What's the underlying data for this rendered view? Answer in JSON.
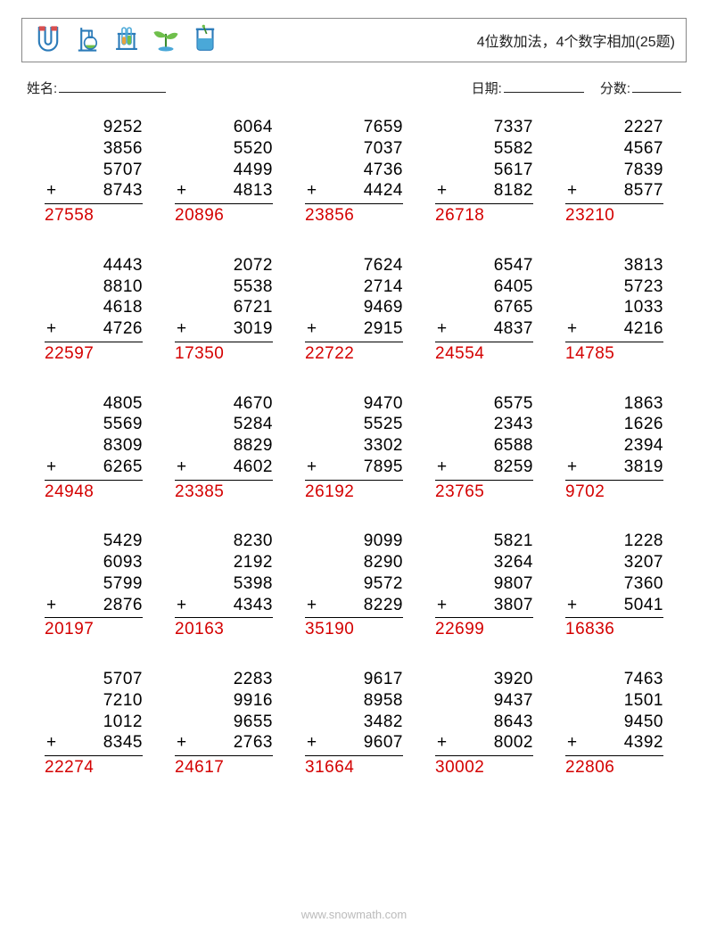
{
  "title": "4位数加法，4个数字相加(25题)",
  "labels": {
    "name": "姓名:",
    "date": "日期:",
    "score": "分数:"
  },
  "colors": {
    "text": "#000000",
    "answer": "#d40000",
    "footer": "#bbbbbb",
    "border": "#888888",
    "icon_blue": "#4aa8d8",
    "icon_blue_dark": "#2b7bb9",
    "icon_green": "#6fbf4b",
    "icon_green_dark": "#3a8b2e",
    "icon_red": "#d94f4f",
    "icon_orange": "#e8a23d"
  },
  "typography": {
    "title_fontsize": 16,
    "label_fontsize": 15,
    "number_fontsize": 19,
    "footer_fontsize": 13
  },
  "operator": "+",
  "problems": [
    {
      "addends": [
        "9252",
        "3856",
        "5707",
        "8743"
      ],
      "answer": "27558"
    },
    {
      "addends": [
        "6064",
        "5520",
        "4499",
        "4813"
      ],
      "answer": "20896"
    },
    {
      "addends": [
        "7659",
        "7037",
        "4736",
        "4424"
      ],
      "answer": "23856"
    },
    {
      "addends": [
        "7337",
        "5582",
        "5617",
        "8182"
      ],
      "answer": "26718"
    },
    {
      "addends": [
        "2227",
        "4567",
        "7839",
        "8577"
      ],
      "answer": "23210"
    },
    {
      "addends": [
        "4443",
        "8810",
        "4618",
        "4726"
      ],
      "answer": "22597"
    },
    {
      "addends": [
        "2072",
        "5538",
        "6721",
        "3019"
      ],
      "answer": "17350"
    },
    {
      "addends": [
        "7624",
        "2714",
        "9469",
        "2915"
      ],
      "answer": "22722"
    },
    {
      "addends": [
        "6547",
        "6405",
        "6765",
        "4837"
      ],
      "answer": "24554"
    },
    {
      "addends": [
        "3813",
        "5723",
        "1033",
        "4216"
      ],
      "answer": "14785"
    },
    {
      "addends": [
        "4805",
        "5569",
        "8309",
        "6265"
      ],
      "answer": "24948"
    },
    {
      "addends": [
        "4670",
        "5284",
        "8829",
        "4602"
      ],
      "answer": "23385"
    },
    {
      "addends": [
        "9470",
        "5525",
        "3302",
        "7895"
      ],
      "answer": "26192"
    },
    {
      "addends": [
        "6575",
        "2343",
        "6588",
        "8259"
      ],
      "answer": "23765"
    },
    {
      "addends": [
        "1863",
        "1626",
        "2394",
        "3819"
      ],
      "answer": "9702"
    },
    {
      "addends": [
        "5429",
        "6093",
        "5799",
        "2876"
      ],
      "answer": "20197"
    },
    {
      "addends": [
        "8230",
        "2192",
        "5398",
        "4343"
      ],
      "answer": "20163"
    },
    {
      "addends": [
        "9099",
        "8290",
        "9572",
        "8229"
      ],
      "answer": "35190"
    },
    {
      "addends": [
        "5821",
        "3264",
        "9807",
        "3807"
      ],
      "answer": "22699"
    },
    {
      "addends": [
        "1228",
        "3207",
        "7360",
        "5041"
      ],
      "answer": "16836"
    },
    {
      "addends": [
        "5707",
        "7210",
        "1012",
        "8345"
      ],
      "answer": "22274"
    },
    {
      "addends": [
        "2283",
        "9916",
        "9655",
        "2763"
      ],
      "answer": "24617"
    },
    {
      "addends": [
        "9617",
        "8958",
        "3482",
        "9607"
      ],
      "answer": "31664"
    },
    {
      "addends": [
        "3920",
        "9437",
        "8643",
        "8002"
      ],
      "answer": "30002"
    },
    {
      "addends": [
        "7463",
        "1501",
        "9450",
        "4392"
      ],
      "answer": "22806"
    }
  ],
  "footer": "www.snowmath.com"
}
